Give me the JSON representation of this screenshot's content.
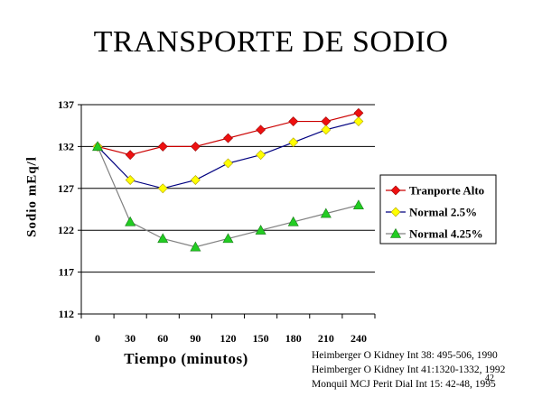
{
  "title": "TRANSPORTE DE SODIO",
  "references": [
    "Heimberger O Kidney Int 38: 495-506, 1990",
    "Heimberger O Kidney Int 41:1320-1332, 1992",
    "Monquil MCJ Perit Dial Int 15: 42-48, 1995"
  ],
  "page_number": "42",
  "chart_data": {
    "type": "line",
    "title": "TRANSPORTE DE SODIO",
    "xlabel": "Tiempo (minutos)",
    "ylabel": "Sodio mEq/l",
    "x_tick_labels": [
      "0",
      "30",
      "60",
      "90",
      "120",
      "150",
      "180",
      "210",
      "240"
    ],
    "y_ticks": [
      112,
      117,
      122,
      127,
      132,
      137
    ],
    "ylim": [
      112,
      137
    ],
    "xlim": [
      -15,
      255
    ],
    "grid": "horizontal",
    "legend_position": "right",
    "x": [
      0,
      30,
      60,
      90,
      120,
      150,
      180,
      210,
      240
    ],
    "series": [
      {
        "name": "Tranporte Alto",
        "color": "#cc0000",
        "marker": "diamond",
        "marker_color": "#ee1111",
        "values": [
          132,
          131,
          132,
          132,
          133,
          134,
          135,
          135,
          136
        ]
      },
      {
        "name": "Normal 2.5%",
        "color": "#000080",
        "marker": "diamond",
        "marker_color": "#ffff00",
        "values": [
          132,
          128,
          127,
          128,
          130,
          131,
          132.5,
          134,
          135
        ]
      },
      {
        "name": "Normal 4.25%",
        "color": "#808080",
        "marker": "triangle",
        "marker_color": "#22cc22",
        "values": [
          132,
          123,
          121,
          120,
          121,
          122,
          123,
          124,
          125
        ]
      }
    ]
  }
}
